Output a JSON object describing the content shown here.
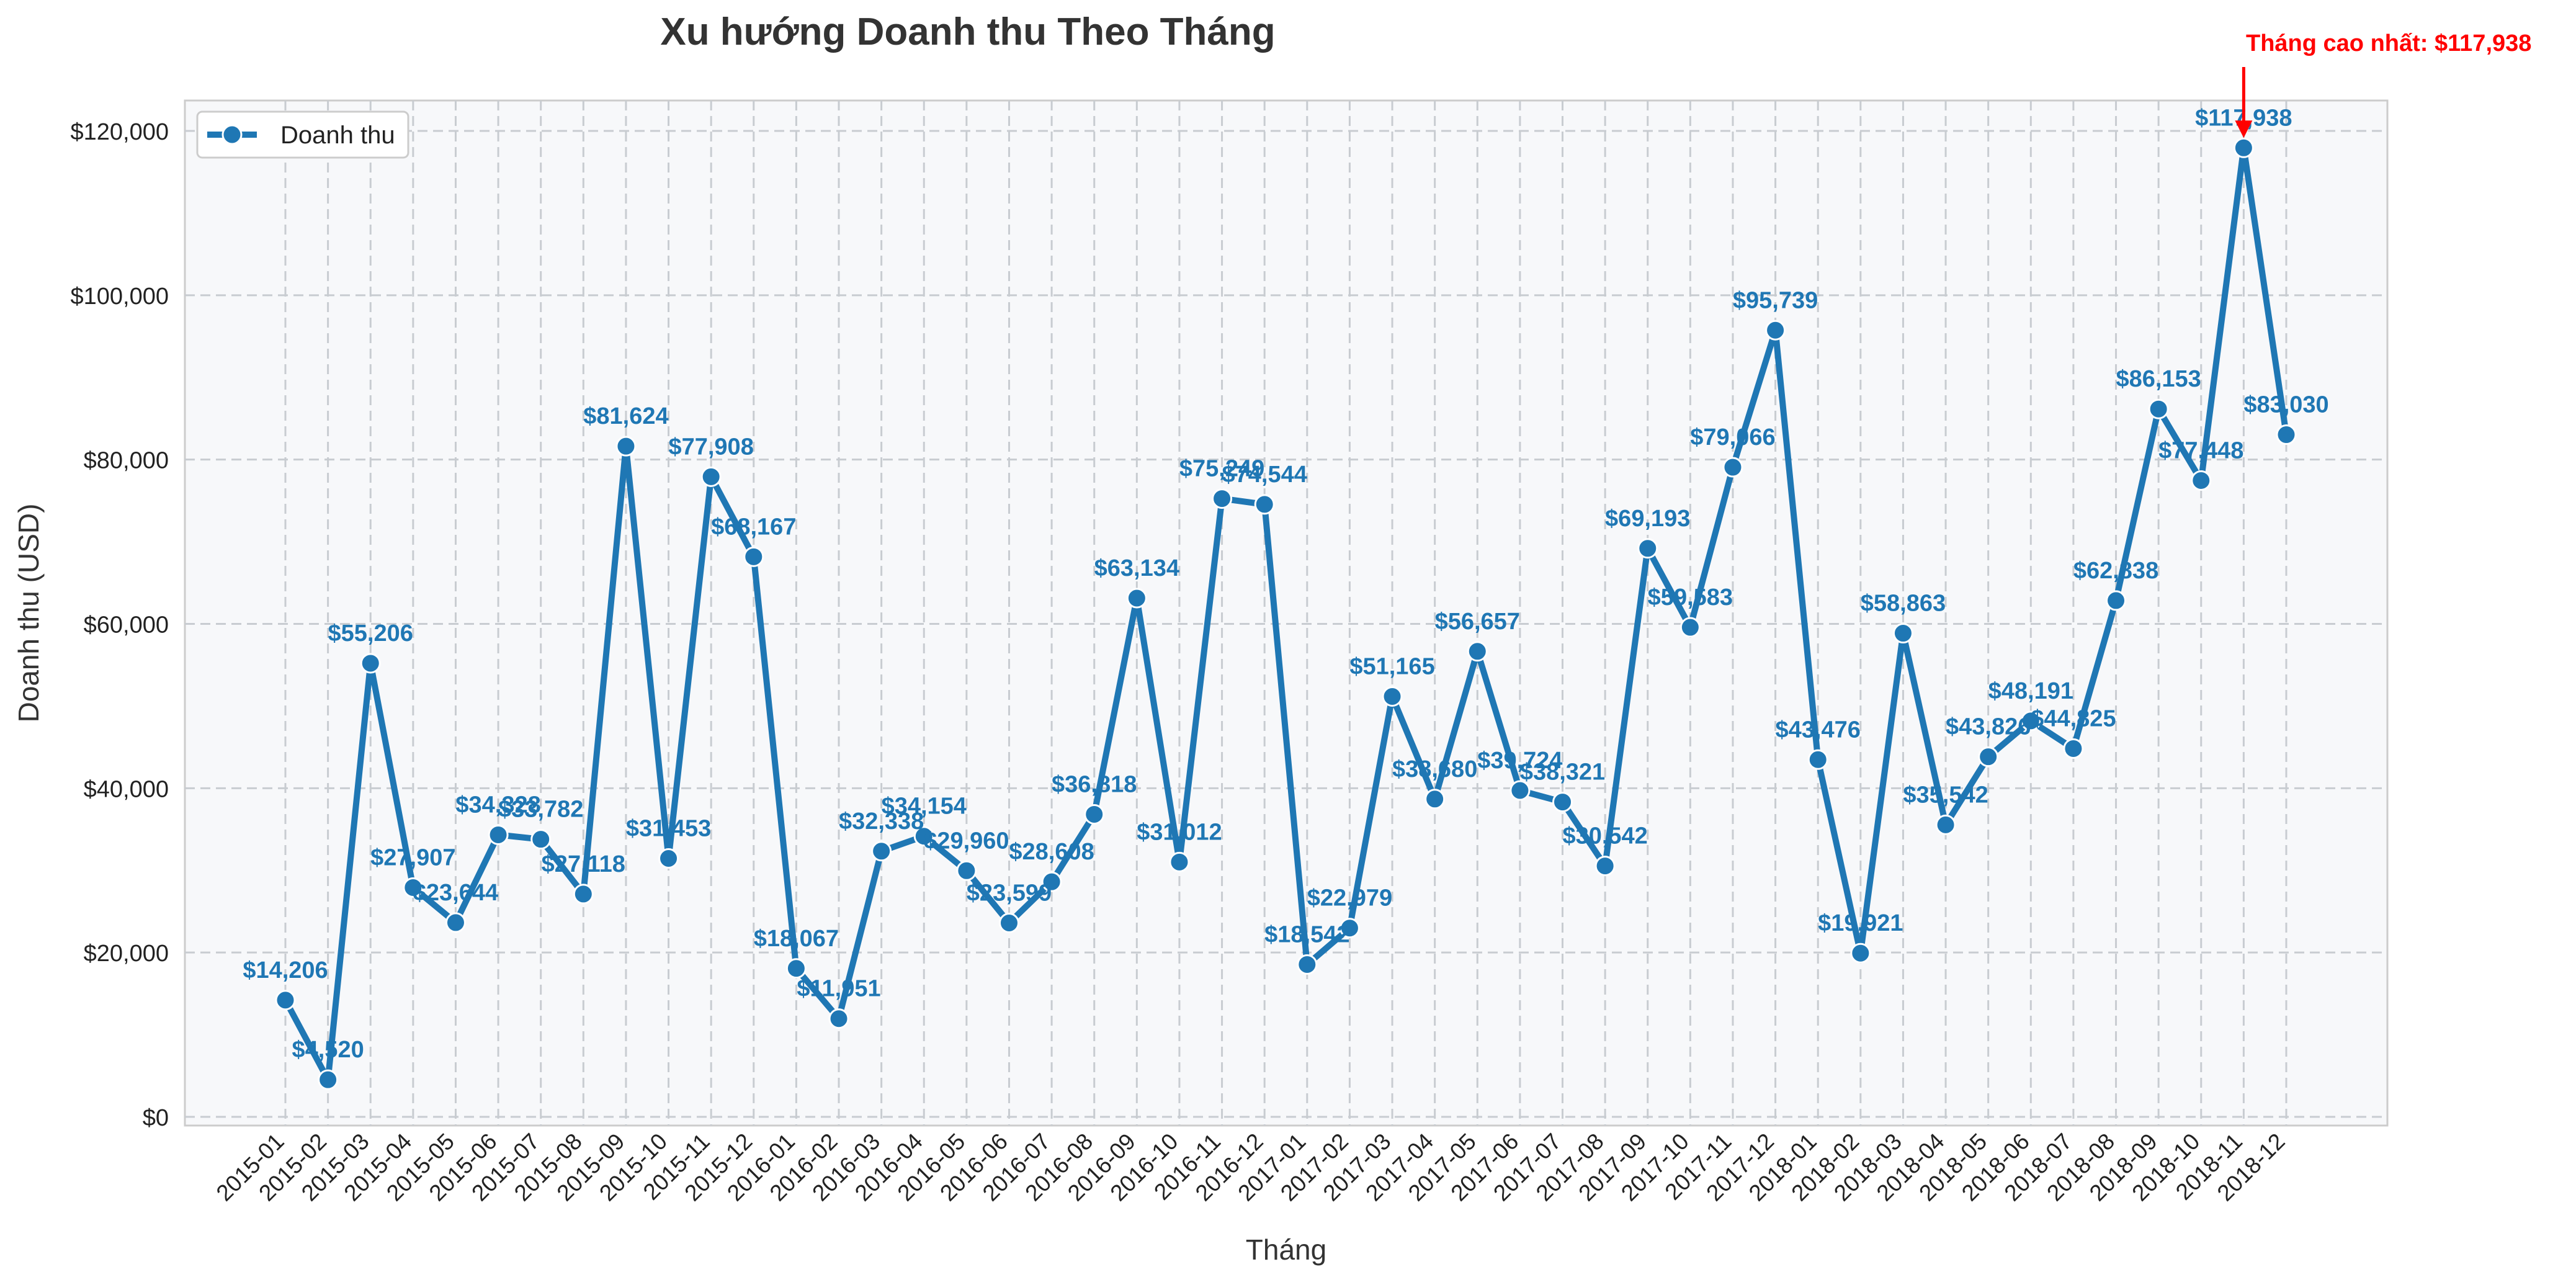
{
  "chart_data": {
    "type": "line",
    "title": "Xu hướng Doanh thu Theo Tháng",
    "xlabel": "Tháng",
    "ylabel": "Doanh thu (USD)",
    "ylim": [
      -1000,
      122500
    ],
    "yticks": [
      0,
      20000,
      40000,
      60000,
      80000,
      100000,
      120000
    ],
    "ytick_labels": [
      "$0",
      "$20,000",
      "$40,000",
      "$60,000",
      "$80,000",
      "$100,000",
      "$120,000"
    ],
    "grid": true,
    "legend_position": "top-left",
    "categories": [
      "2015-01",
      "2015-02",
      "2015-03",
      "2015-04",
      "2015-05",
      "2015-06",
      "2015-07",
      "2015-08",
      "2015-09",
      "2015-10",
      "2015-11",
      "2015-12",
      "2016-01",
      "2016-02",
      "2016-03",
      "2016-04",
      "2016-05",
      "2016-06",
      "2016-07",
      "2016-08",
      "2016-09",
      "2016-10",
      "2016-11",
      "2016-12",
      "2017-01",
      "2017-02",
      "2017-03",
      "2017-04",
      "2017-05",
      "2017-06",
      "2017-07",
      "2017-08",
      "2017-09",
      "2017-10",
      "2017-11",
      "2017-12",
      "2018-01",
      "2018-02",
      "2018-03",
      "2018-04",
      "2018-05",
      "2018-06",
      "2018-07",
      "2018-08",
      "2018-09",
      "2018-10",
      "2018-11",
      "2018-12"
    ],
    "series": [
      {
        "name": "Doanh thu",
        "color": "#1f77b4",
        "values": [
          14206,
          4520,
          55206,
          27907,
          23644,
          34328,
          33782,
          27118,
          81624,
          31453,
          77908,
          68167,
          18067,
          11951,
          32338,
          34154,
          29960,
          23599,
          28608,
          36818,
          63134,
          31012,
          75249,
          74544,
          18542,
          22979,
          51165,
          38680,
          56657,
          39724,
          38321,
          30542,
          69193,
          59583,
          79066,
          95739,
          43476,
          19921,
          58863,
          35542,
          43826,
          48191,
          44825,
          62838,
          86153,
          77448,
          117938,
          83030
        ],
        "labels": [
          "$14,206",
          "$4,520",
          "$55,206",
          "$27,907",
          "$23,644",
          "$34,328",
          "$33,782",
          "$27,118",
          "$81,624",
          "$31,453",
          "$77,908",
          "$68,167",
          "$18,067",
          "$11,951",
          "$32,338",
          "$34,154",
          "$29,960",
          "$23,599",
          "$28,608",
          "$36,818",
          "$63,134",
          "$31,012",
          "$75,249",
          "$74,544",
          "$18,542",
          "$22,979",
          "$51,165",
          "$38,680",
          "$56,657",
          "$39,724",
          "$38,321",
          "$30,542",
          "$69,193",
          "$59,583",
          "$79,066",
          "$95,739",
          "$43,476",
          "$19,921",
          "$58,863",
          "$35,542",
          "$43,826",
          "$48,191",
          "$44,825",
          "$62,838",
          "$86,153",
          "$77,448",
          "$117,938",
          "$83,030"
        ]
      }
    ],
    "annotation": {
      "text": "Tháng cao nhất: $117,938",
      "target_index": 46,
      "color": "#ff0000"
    },
    "colors": {
      "plot_background": "#f7f8fa",
      "grid": "#c8ccd1",
      "axes_border": "#cccccc"
    }
  }
}
